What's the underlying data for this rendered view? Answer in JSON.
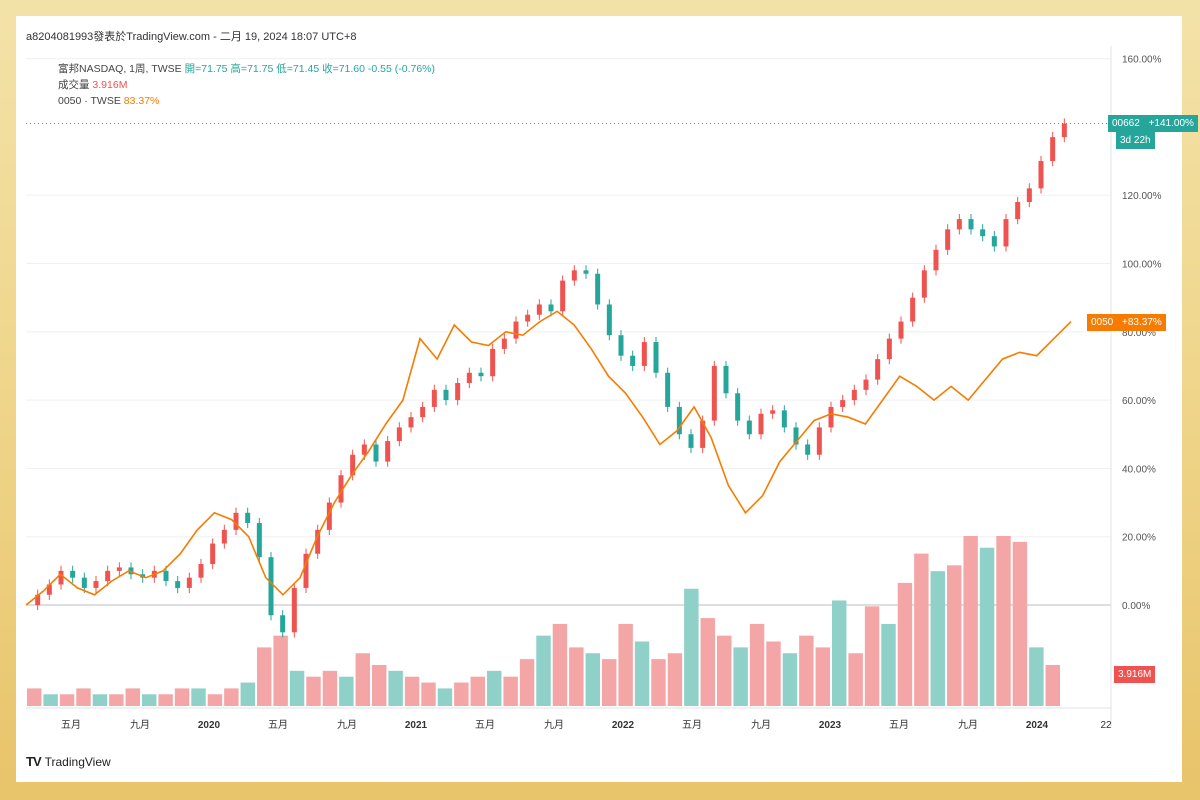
{
  "attribution": "a8204081993發表於TradingView.com - 二月 19, 2024 18:07 UTC+8",
  "legend": {
    "symbol": "富邦NASDAQ, 1周, TWSE",
    "ohlc": "開=71.75 高=71.75 低=71.45 收=71.60 -0.55 (-0.76%)",
    "volume_label": "成交量",
    "volume_value": "3.916M",
    "compare_label": "0050 · TWSE",
    "compare_value": "83.37%"
  },
  "tags": {
    "main_symbol": "00662",
    "main_pct": "+141.00%",
    "main_time": "3d 22h",
    "compare_symbol": "0050",
    "compare_pct": "+83.37%",
    "volume": "3.916M"
  },
  "logo": "TradingView",
  "colors": {
    "up": "#ef5350",
    "down": "#26a69a",
    "compare": "#f57c00",
    "vol_up": "#f4a6a6",
    "vol_down": "#8fd0c8"
  },
  "chart_data": {
    "type": "line",
    "y_unit": "percent change",
    "ylim": [
      -15,
      165
    ],
    "y_ticks": [
      "160.00%",
      "120.00%",
      "100.00%",
      "80.00%",
      "60.00%",
      "40.00%",
      "20.00%",
      "0.00%"
    ],
    "x_ticks": [
      "五月",
      "九月",
      "2020",
      "五月",
      "九月",
      "2021",
      "五月",
      "九月",
      "2022",
      "五月",
      "九月",
      "2023",
      "五月",
      "九月",
      "2024",
      "22"
    ],
    "series": [
      {
        "name": "00662",
        "style": "candlestick",
        "values": [
          0,
          3,
          6,
          10,
          8,
          5,
          7,
          10,
          11,
          9,
          8,
          10,
          7,
          5,
          8,
          12,
          18,
          22,
          27,
          24,
          14,
          -3,
          -8,
          5,
          15,
          22,
          30,
          38,
          44,
          47,
          42,
          48,
          52,
          55,
          58,
          63,
          60,
          65,
          68,
          67,
          75,
          78,
          83,
          85,
          88,
          86,
          95,
          98,
          97,
          88,
          79,
          73,
          70,
          77,
          68,
          58,
          50,
          46,
          54,
          70,
          62,
          54,
          50,
          56,
          57,
          52,
          47,
          44,
          52,
          58,
          60,
          63,
          66,
          72,
          78,
          83,
          90,
          98,
          104,
          110,
          113,
          110,
          108,
          105,
          113,
          118,
          122,
          130,
          137,
          141
        ]
      },
      {
        "name": "0050",
        "style": "line",
        "values": [
          0,
          4,
          9,
          5,
          3,
          7,
          10,
          8,
          10,
          15,
          22,
          27,
          25,
          20,
          8,
          3,
          8,
          20,
          30,
          38,
          45,
          53,
          60,
          78,
          72,
          82,
          77,
          76,
          80,
          79,
          83,
          86,
          82,
          75,
          67,
          62,
          55,
          47,
          51,
          58,
          49,
          35,
          27,
          32,
          42,
          48,
          54,
          56,
          55,
          53,
          60,
          67,
          64,
          60,
          64,
          60,
          66,
          72,
          74,
          73,
          78,
          83
        ]
      }
    ],
    "volume": [
      3,
      2,
      2,
      3,
      2,
      2,
      3,
      2,
      2,
      3,
      3,
      2,
      3,
      4,
      10,
      12,
      6,
      5,
      6,
      5,
      9,
      7,
      6,
      5,
      4,
      3,
      4,
      5,
      6,
      5,
      8,
      12,
      14,
      10,
      9,
      8,
      14,
      11,
      8,
      9,
      20,
      15,
      12,
      10,
      14,
      11,
      9,
      12,
      10,
      18,
      9,
      17,
      14,
      21,
      26,
      23,
      24,
      29,
      27,
      29,
      28,
      10,
      7
    ]
  }
}
